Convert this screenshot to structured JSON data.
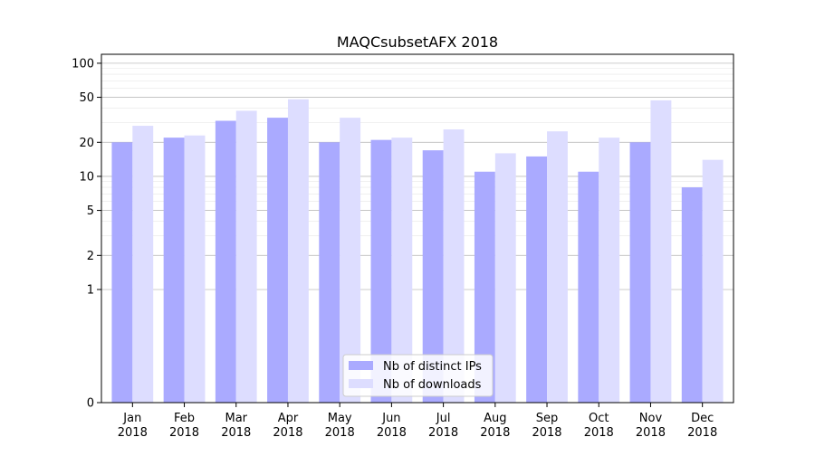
{
  "chart_data": {
    "type": "bar",
    "title": "MAQCsubsetAFX 2018",
    "xlabel": "",
    "ylabel": "",
    "y_scale": "symlog",
    "ylim": [
      0,
      120
    ],
    "yticks": [
      0,
      1,
      2,
      5,
      10,
      20,
      50,
      100
    ],
    "ytick_labels": [
      "0",
      "1",
      "2",
      "5",
      "10",
      "20",
      "50",
      "100"
    ],
    "grid": true,
    "legend_position": "bottom-center",
    "categories": [
      "Jan\n2018",
      "Feb\n2018",
      "Mar\n2018",
      "Apr\n2018",
      "May\n2018",
      "Jun\n2018",
      "Jul\n2018",
      "Aug\n2018",
      "Sep\n2018",
      "Oct\n2018",
      "Nov\n2018",
      "Dec\n2018"
    ],
    "series": [
      {
        "name": "Nb of distinct IPs",
        "color": "#aaaaff",
        "values": [
          20,
          22,
          31,
          33,
          20,
          21,
          17,
          11,
          15,
          11,
          20,
          8
        ]
      },
      {
        "name": "Nb of downloads",
        "color": "#ddddff",
        "values": [
          28,
          23,
          38,
          48,
          33,
          22,
          26,
          16,
          25,
          22,
          47,
          14
        ]
      }
    ]
  }
}
